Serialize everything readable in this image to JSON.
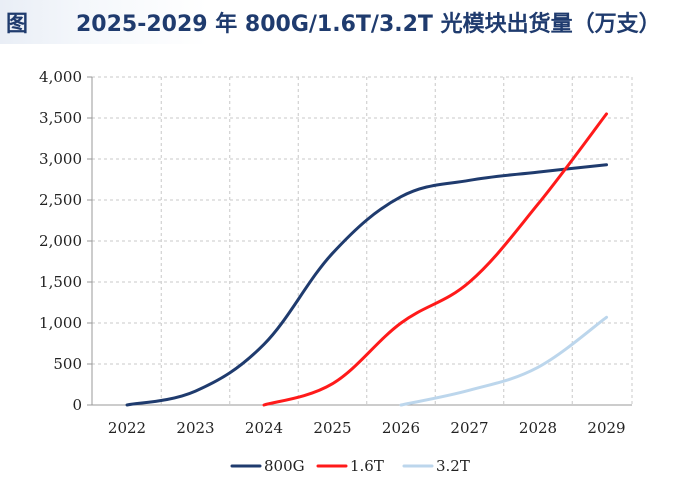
{
  "header": {
    "figure_label": "图",
    "title": "2025-2029 年 800G/1.6T/3.2T 光模块出货量（万支）"
  },
  "chart_data": {
    "type": "line",
    "title": "2025-2029 年 800G/1.6T/3.2T 光模块出货量（万支）",
    "xlabel": "",
    "ylabel": "",
    "xlim": [
      2022,
      2029
    ],
    "ylim": [
      0,
      4000
    ],
    "x_ticks": [
      "2022",
      "2023",
      "2024",
      "2025",
      "2026",
      "2027",
      "2028",
      "2029"
    ],
    "y_ticks": [
      {
        "value": 0,
        "label": "0"
      },
      {
        "value": 500,
        "label": "500"
      },
      {
        "value": 1000,
        "label": "1,000"
      },
      {
        "value": 1500,
        "label": "1,500"
      },
      {
        "value": 2000,
        "label": "2,000"
      },
      {
        "value": 2500,
        "label": "2,500"
      },
      {
        "value": 3000,
        "label": "3,000"
      },
      {
        "value": 3500,
        "label": "3,500"
      },
      {
        "value": 4000,
        "label": "4,000"
      }
    ],
    "grid": "dashed horizontal and vertical",
    "legend_position": "bottom",
    "series": [
      {
        "name": "800G",
        "color": "#1f3b6e",
        "points": [
          [
            2022,
            0
          ],
          [
            2023,
            170
          ],
          [
            2024,
            740
          ],
          [
            2025,
            1850
          ],
          [
            2026,
            2540
          ],
          [
            2027,
            2740
          ],
          [
            2028,
            2840
          ],
          [
            2029,
            2930
          ]
        ]
      },
      {
        "name": "1.6T",
        "color": "#ff1a1a",
        "points": [
          [
            2024,
            0
          ],
          [
            2025,
            260
          ],
          [
            2026,
            1000
          ],
          [
            2027,
            1500
          ],
          [
            2028,
            2450
          ],
          [
            2029,
            3550
          ]
        ]
      },
      {
        "name": "3.2T",
        "color": "#bcd6ec",
        "points": [
          [
            2026,
            0
          ],
          [
            2027,
            180
          ],
          [
            2028,
            460
          ],
          [
            2029,
            1070
          ]
        ]
      }
    ]
  }
}
